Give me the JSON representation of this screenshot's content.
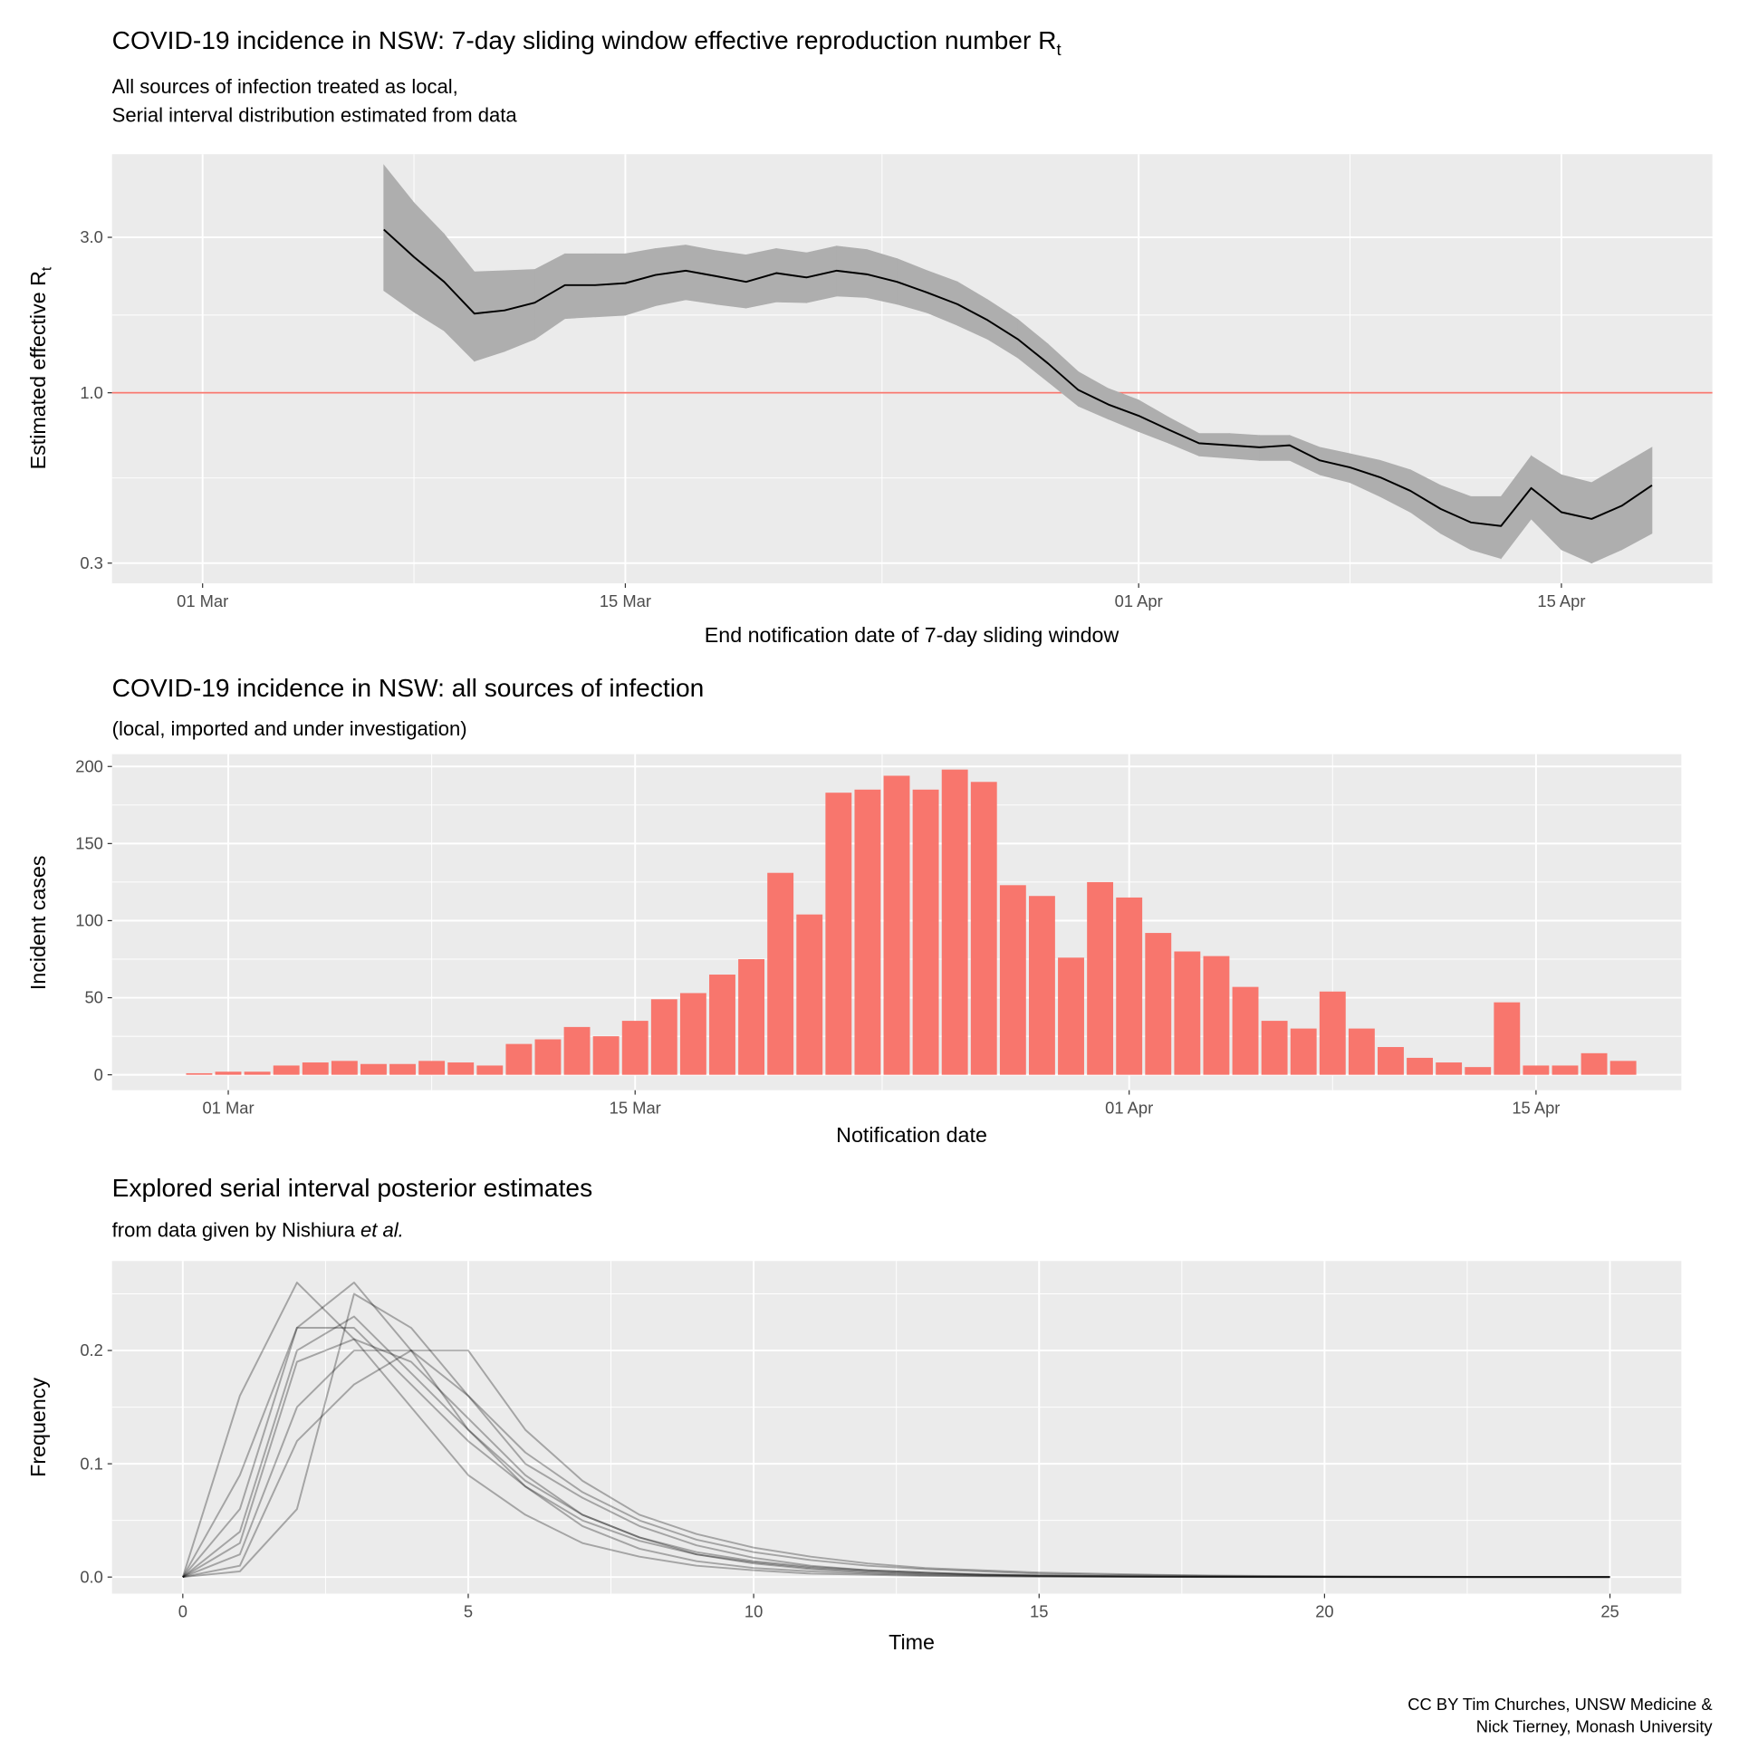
{
  "chart_data": [
    {
      "type": "line",
      "title": "COVID-19 incidence in NSW: 7-day sliding window effective reproduction number R",
      "title_subscript": "t",
      "subtitle": [
        "All sources of infection treated as local,",
        "Serial interval distribution estimated from data"
      ],
      "x_label": "End notification date of 7-day sliding window",
      "y_label": "Estimated effective R",
      "y_label_subscript": "t",
      "x": [
        "03-07",
        "03-08",
        "03-09",
        "03-10",
        "03-11",
        "03-12",
        "03-13",
        "03-14",
        "03-15",
        "03-16",
        "03-17",
        "03-18",
        "03-19",
        "03-20",
        "03-21",
        "03-22",
        "03-23",
        "03-24",
        "03-25",
        "03-26",
        "03-27",
        "03-28",
        "03-29",
        "03-30",
        "03-31",
        "04-01",
        "04-02",
        "04-03",
        "04-04",
        "04-05",
        "04-06",
        "04-07",
        "04-08",
        "04-09",
        "04-10",
        "04-11",
        "04-12",
        "04-13",
        "04-14",
        "04-15",
        "04-16",
        "04-17",
        "04-18"
      ],
      "series": [
        {
          "color": "#000000",
          "band_color": "#AEAEAE",
          "values": [
            3.17,
            2.61,
            2.19,
            1.75,
            1.79,
            1.89,
            2.14,
            2.14,
            2.17,
            2.3,
            2.37,
            2.28,
            2.19,
            2.33,
            2.26,
            2.37,
            2.31,
            2.19,
            2.03,
            1.87,
            1.67,
            1.46,
            1.23,
            1.02,
            0.92,
            0.85,
            0.77,
            0.7,
            0.69,
            0.68,
            0.69,
            0.62,
            0.59,
            0.55,
            0.5,
            0.44,
            0.4,
            0.39,
            0.51,
            0.43,
            0.41,
            0.45,
            0.52
          ],
          "lower": [
            2.06,
            1.77,
            1.55,
            1.25,
            1.34,
            1.46,
            1.69,
            1.71,
            1.73,
            1.85,
            1.93,
            1.87,
            1.82,
            1.9,
            1.89,
            1.98,
            1.96,
            1.87,
            1.76,
            1.61,
            1.46,
            1.28,
            1.08,
            0.91,
            0.83,
            0.76,
            0.7,
            0.64,
            0.63,
            0.62,
            0.62,
            0.56,
            0.53,
            0.48,
            0.43,
            0.37,
            0.33,
            0.31,
            0.41,
            0.33,
            0.3,
            0.33,
            0.37
          ],
          "upper": [
            5.0,
            3.83,
            3.07,
            2.35,
            2.37,
            2.39,
            2.67,
            2.67,
            2.67,
            2.77,
            2.84,
            2.73,
            2.65,
            2.77,
            2.69,
            2.82,
            2.75,
            2.58,
            2.37,
            2.19,
            1.93,
            1.68,
            1.41,
            1.16,
            1.03,
            0.95,
            0.84,
            0.75,
            0.75,
            0.74,
            0.74,
            0.68,
            0.65,
            0.62,
            0.58,
            0.52,
            0.48,
            0.48,
            0.64,
            0.56,
            0.53,
            0.6,
            0.68
          ]
        }
      ],
      "hline": {
        "value": 1,
        "color": "#F8766D"
      },
      "log_y": true,
      "xlim": [
        "02-27",
        "04-20"
      ],
      "ylim": [
        0.26,
        5.4
      ],
      "xticks": [
        {
          "value": "03-01",
          "label": "01 Mar"
        },
        {
          "value": "03-15",
          "label": "15 Mar"
        },
        {
          "value": "04-01",
          "label": "01 Apr"
        },
        {
          "value": "04-15",
          "label": "15 Apr"
        }
      ],
      "yticks": [
        0.3,
        {
          "value": 1,
          "label": "1.0"
        },
        {
          "value": 3,
          "label": "3.0"
        }
      ],
      "grid": true
    },
    {
      "type": "bar",
      "title": "COVID-19 incidence in NSW: all sources of infection",
      "subtitle": [
        "(local, imported and under investigation)"
      ],
      "x_label": "Notification date",
      "y_label": "Incident cases",
      "x": [
        "02-29",
        "03-01",
        "03-02",
        "03-03",
        "03-04",
        "03-05",
        "03-06",
        "03-07",
        "03-08",
        "03-09",
        "03-10",
        "03-11",
        "03-12",
        "03-13",
        "03-14",
        "03-15",
        "03-16",
        "03-17",
        "03-18",
        "03-19",
        "03-20",
        "03-21",
        "03-22",
        "03-23",
        "03-24",
        "03-25",
        "03-26",
        "03-27",
        "03-28",
        "03-29",
        "03-30",
        "03-31",
        "04-01",
        "04-02",
        "04-03",
        "04-04",
        "04-05",
        "04-06",
        "04-07",
        "04-08",
        "04-09",
        "04-10",
        "04-11",
        "04-12",
        "04-13",
        "04-14",
        "04-15",
        "04-16",
        "04-17",
        "04-18"
      ],
      "values": [
        1,
        2,
        2,
        6,
        8,
        9,
        7,
        7,
        9,
        8,
        6,
        20,
        23,
        31,
        25,
        35,
        49,
        53,
        65,
        75,
        131,
        104,
        183,
        185,
        194,
        185,
        198,
        190,
        123,
        116,
        76,
        125,
        115,
        92,
        80,
        77,
        57,
        35,
        30,
        54,
        30,
        18,
        11,
        8,
        5,
        47,
        6,
        6,
        14,
        9
      ],
      "color": "#F8766D",
      "xlim": [
        "02-26",
        "04-20"
      ],
      "ylim": [
        -10,
        208
      ],
      "xticks": [
        {
          "value": "03-01",
          "label": "01 Mar"
        },
        {
          "value": "03-15",
          "label": "15 Mar"
        },
        {
          "value": "04-01",
          "label": "01 Apr"
        },
        {
          "value": "04-15",
          "label": "15 Apr"
        }
      ],
      "yticks": [
        0,
        50,
        100,
        150,
        200
      ],
      "grid": true
    },
    {
      "type": "line",
      "title": "Explored serial interval posterior estimates",
      "subtitle": [
        "from data given by Nishiura"
      ],
      "subtitle_italic": "et al.",
      "x_label": "Time",
      "y_label": "Frequency",
      "x": [
        0,
        1,
        2,
        3,
        4,
        5,
        6,
        7,
        8,
        9,
        10,
        11,
        12,
        13,
        14,
        15,
        16,
        17,
        18,
        19,
        20,
        21,
        22,
        23,
        24,
        25
      ],
      "opacity": 0.3,
      "series": [
        {
          "color": "#000000",
          "values": [
            0,
            0.03,
            0.19,
            0.21,
            0.19,
            0.14,
            0.09,
            0.055,
            0.035,
            0.02,
            0.012,
            0.007,
            0.004,
            0.0025,
            0.0015,
            0.0009,
            0.0005,
            0.0003,
            0.0002,
            0.0001,
            0.0001,
            0,
            0,
            0,
            0,
            0
          ]
        },
        {
          "color": "#000000",
          "values": [
            0,
            0.16,
            0.26,
            0.21,
            0.15,
            0.09,
            0.055,
            0.03,
            0.018,
            0.01,
            0.006,
            0.003,
            0.002,
            0.001,
            0.0006,
            0.0003,
            0.0002,
            0.0001,
            0,
            0,
            0,
            0,
            0,
            0,
            0,
            0
          ]
        },
        {
          "color": "#000000",
          "values": [
            0,
            0.005,
            0.06,
            0.25,
            0.22,
            0.16,
            0.1,
            0.07,
            0.045,
            0.028,
            0.017,
            0.01,
            0.006,
            0.004,
            0.002,
            0.0013,
            0.0008,
            0.0005,
            0.0003,
            0.0002,
            0.0001,
            0.0001,
            0,
            0,
            0,
            0
          ]
        },
        {
          "color": "#000000",
          "values": [
            0,
            0.02,
            0.15,
            0.2,
            0.2,
            0.16,
            0.11,
            0.075,
            0.05,
            0.033,
            0.022,
            0.015,
            0.01,
            0.007,
            0.005,
            0.003,
            0.002,
            0.0015,
            0.001,
            0.0007,
            0.0005,
            0.0003,
            0.0002,
            0.0001,
            0.0001,
            0
          ]
        },
        {
          "color": "#000000",
          "values": [
            0,
            0.09,
            0.22,
            0.22,
            0.17,
            0.12,
            0.08,
            0.05,
            0.032,
            0.02,
            0.013,
            0.008,
            0.005,
            0.003,
            0.002,
            0.001,
            0.0007,
            0.0004,
            0.0003,
            0.0002,
            0.0001,
            0,
            0,
            0,
            0,
            0
          ]
        },
        {
          "color": "#000000",
          "values": [
            0,
            0.01,
            0.12,
            0.17,
            0.2,
            0.2,
            0.13,
            0.085,
            0.055,
            0.038,
            0.026,
            0.018,
            0.012,
            0.008,
            0.006,
            0.004,
            0.003,
            0.002,
            0.0014,
            0.001,
            0.0007,
            0.0005,
            0.0003,
            0.0002,
            0.0002,
            0.0001
          ]
        },
        {
          "color": "#000000",
          "values": [
            0,
            0.04,
            0.2,
            0.23,
            0.18,
            0.13,
            0.085,
            0.055,
            0.035,
            0.022,
            0.014,
            0.009,
            0.006,
            0.004,
            0.0025,
            0.0015,
            0.001,
            0.0006,
            0.0004,
            0.0003,
            0.0002,
            0.0001,
            0.0001,
            0,
            0,
            0
          ]
        },
        {
          "color": "#000000",
          "values": [
            0,
            0.06,
            0.22,
            0.26,
            0.2,
            0.13,
            0.08,
            0.045,
            0.025,
            0.014,
            0.008,
            0.005,
            0.003,
            0.0016,
            0.0009,
            0.0005,
            0.0003,
            0.0002,
            0.0001,
            0,
            0,
            0,
            0,
            0,
            0,
            0
          ]
        }
      ],
      "xlim": [
        -1.24,
        26.25
      ],
      "ylim": [
        -0.0147,
        0.279
      ],
      "xticks": [
        0,
        5,
        10,
        15,
        20,
        25
      ],
      "yticks": [
        {
          "value": 0,
          "label": "0.0"
        },
        {
          "value": 0.1,
          "label": "0.1"
        },
        {
          "value": 0.2,
          "label": "0.2"
        }
      ],
      "grid": true
    }
  ],
  "caption": [
    "CC BY Tim Churches, UNSW Medicine &",
    "Nick Tierney, Monash University"
  ]
}
